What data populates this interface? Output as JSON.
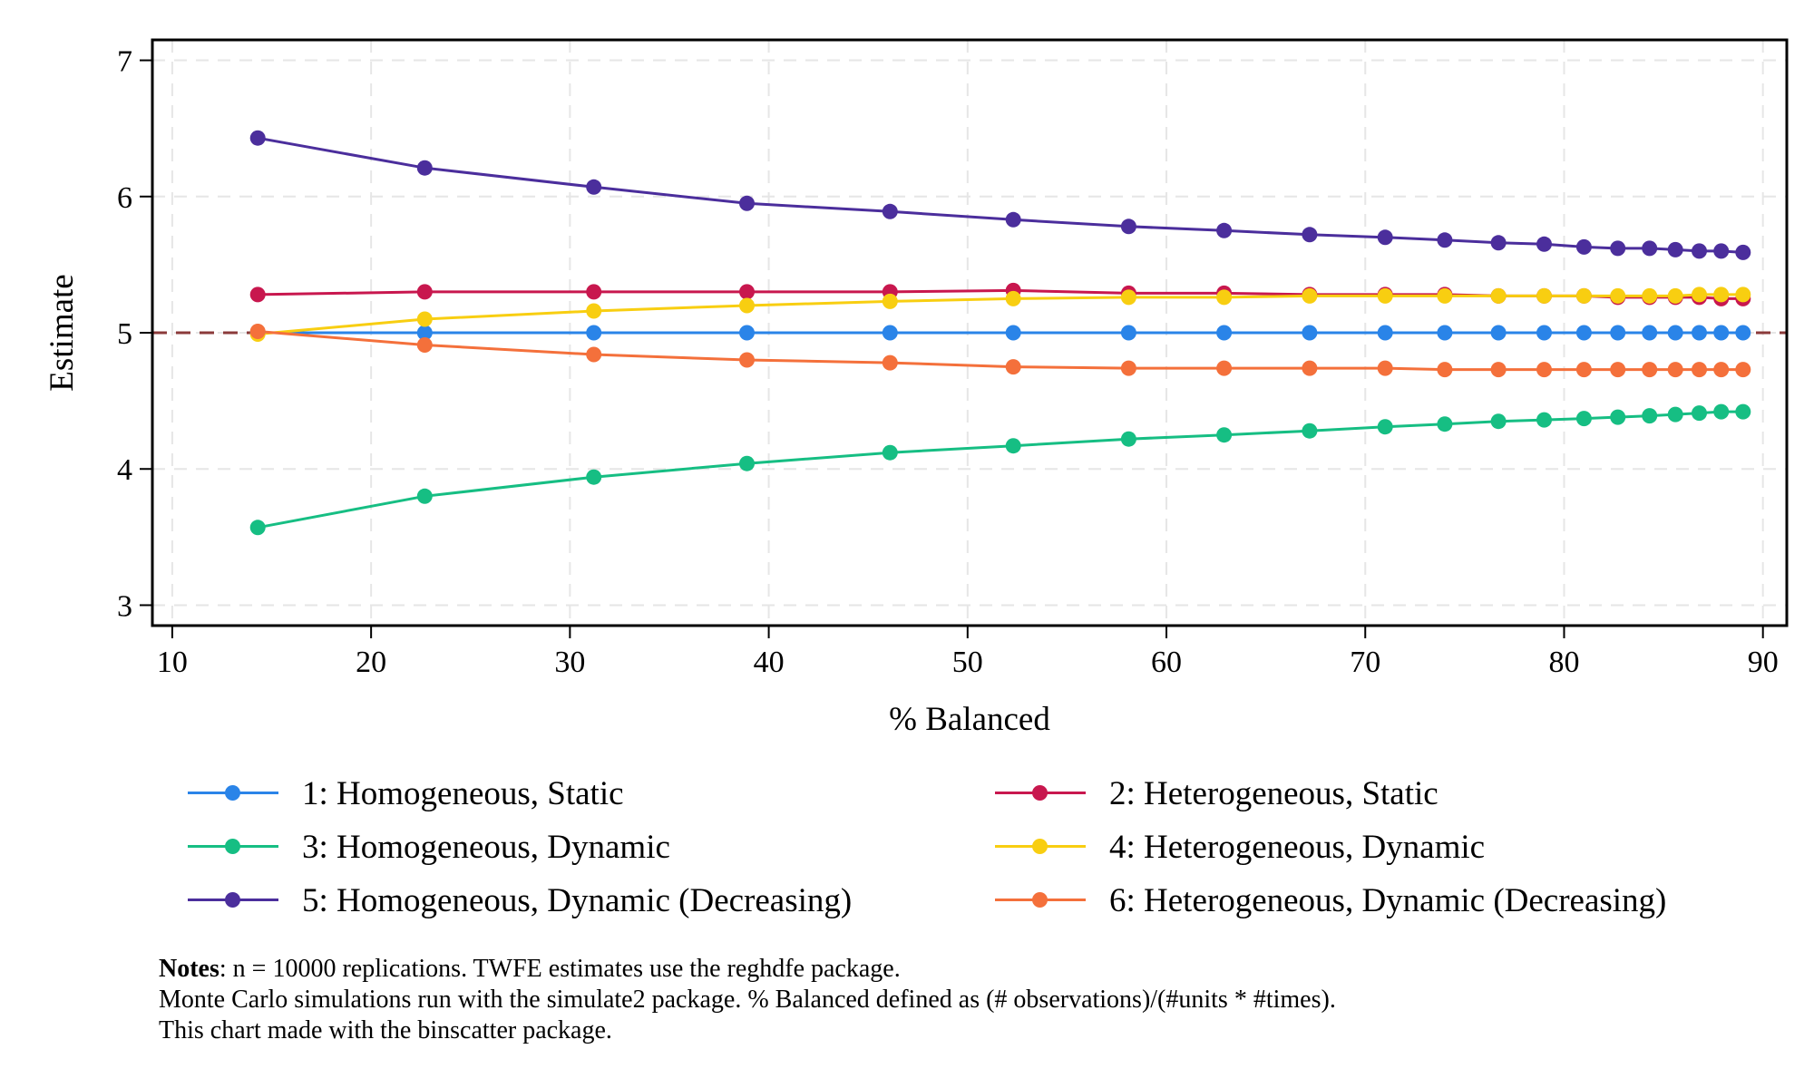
{
  "chart_data": {
    "type": "line",
    "xlabel": "% Balanced",
    "ylabel": "Estimate",
    "xlim": [
      9,
      91.2
    ],
    "ylim": [
      2.85,
      7.15
    ],
    "xticks": [
      10,
      20,
      30,
      40,
      50,
      60,
      70,
      80,
      90
    ],
    "yticks": [
      3,
      4,
      5,
      6,
      7
    ],
    "grid": true,
    "reference_line": {
      "y": 5,
      "style": "dashed",
      "color": "#8B3A3A"
    },
    "legend_position": "bottom",
    "x": [
      14.3,
      22.7,
      31.2,
      38.9,
      46.1,
      52.3,
      58.1,
      62.9,
      67.2,
      71.0,
      74.0,
      76.7,
      79.0,
      81.0,
      82.7,
      84.3,
      85.6,
      86.8,
      87.9,
      89.0
    ],
    "series": [
      {
        "name": "1: Homogeneous, Static",
        "color": "#2A84E8",
        "values": [
          5.0,
          5.0,
          5.0,
          5.0,
          5.0,
          5.0,
          5.0,
          5.0,
          5.0,
          5.0,
          5.0,
          5.0,
          5.0,
          5.0,
          5.0,
          5.0,
          5.0,
          5.0,
          5.0,
          5.0
        ]
      },
      {
        "name": "2: Heterogeneous, Static",
        "color": "#C8174E",
        "values": [
          5.28,
          5.3,
          5.3,
          5.3,
          5.3,
          5.31,
          5.29,
          5.29,
          5.28,
          5.28,
          5.28,
          5.27,
          5.27,
          5.27,
          5.26,
          5.26,
          5.26,
          5.26,
          5.25,
          5.25
        ]
      },
      {
        "name": "3: Homogeneous, Dynamic",
        "color": "#16BE83",
        "values": [
          3.57,
          3.8,
          3.94,
          4.04,
          4.12,
          4.17,
          4.22,
          4.25,
          4.28,
          4.31,
          4.33,
          4.35,
          4.36,
          4.37,
          4.38,
          4.39,
          4.4,
          4.41,
          4.42,
          4.42
        ]
      },
      {
        "name": "4: Heterogeneous, Dynamic",
        "color": "#F8CE11",
        "values": [
          4.99,
          5.1,
          5.16,
          5.2,
          5.23,
          5.25,
          5.26,
          5.26,
          5.27,
          5.27,
          5.27,
          5.27,
          5.27,
          5.27,
          5.27,
          5.27,
          5.27,
          5.28,
          5.28,
          5.28
        ]
      },
      {
        "name": "5: Homogeneous, Dynamic (Decreasing)",
        "color": "#4B2E9C",
        "values": [
          6.43,
          6.21,
          6.07,
          5.95,
          5.89,
          5.83,
          5.78,
          5.75,
          5.72,
          5.7,
          5.68,
          5.66,
          5.65,
          5.63,
          5.62,
          5.62,
          5.61,
          5.6,
          5.6,
          5.59
        ]
      },
      {
        "name": "6: Heterogeneous, Dynamic (Decreasing)",
        "color": "#F4703B",
        "values": [
          5.01,
          4.91,
          4.84,
          4.8,
          4.78,
          4.75,
          4.74,
          4.74,
          4.74,
          4.74,
          4.73,
          4.73,
          4.73,
          4.73,
          4.73,
          4.73,
          4.73,
          4.73,
          4.73,
          4.73
        ]
      }
    ]
  },
  "notes": {
    "label": "Notes",
    "line1_rest": ": n = 10000 replications. TWFE estimates use the reghdfe package.",
    "line2": "Monte Carlo simulations run with the simulate2 package. % Balanced defined as (# observations)/(#units * #times).",
    "line3": "This chart made with the binscatter package."
  }
}
